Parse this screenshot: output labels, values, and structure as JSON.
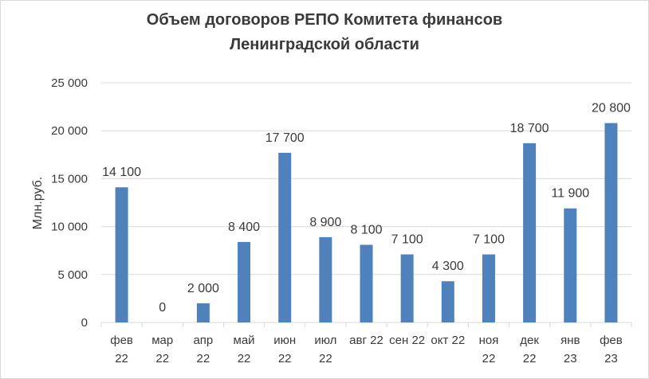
{
  "chart_data": {
    "type": "bar",
    "title_lines": [
      "Объем  договоров РЕПО Комитета финансов",
      "Ленинградской области"
    ],
    "ylabel": "Млн.руб.",
    "xlabel": "",
    "ylim": [
      0,
      25000
    ],
    "y_ticks": [
      "0",
      "5 000",
      "10 000",
      "15 000",
      "20 000",
      "25 000"
    ],
    "y_tick_values": [
      0,
      5000,
      10000,
      15000,
      20000,
      25000
    ],
    "categories": [
      [
        "фев",
        "22"
      ],
      [
        "мар",
        "22"
      ],
      [
        "апр",
        "22"
      ],
      [
        "май",
        "22"
      ],
      [
        "июн",
        "22"
      ],
      [
        "июл",
        "22"
      ],
      [
        "авг 22"
      ],
      [
        "сен 22"
      ],
      [
        "окт 22"
      ],
      [
        "ноя",
        "22"
      ],
      [
        "дек",
        "22"
      ],
      [
        "янв",
        "23"
      ],
      [
        "фев",
        "23"
      ]
    ],
    "values": [
      14100,
      0,
      2000,
      8400,
      17700,
      8900,
      8100,
      7100,
      4300,
      7100,
      18700,
      11900,
      20800
    ],
    "value_labels": [
      "14 100",
      "0",
      "2 000",
      "8 400",
      "17 700",
      "8 900",
      "8 100",
      "7 100",
      "4 300",
      "7 100",
      "18 700",
      "11 900",
      "20 800"
    ],
    "grid": true,
    "legend": "none",
    "colors": {
      "bar": "#4f81bd",
      "grid": "#d9d9d9",
      "text": "#3a3a3a"
    }
  }
}
